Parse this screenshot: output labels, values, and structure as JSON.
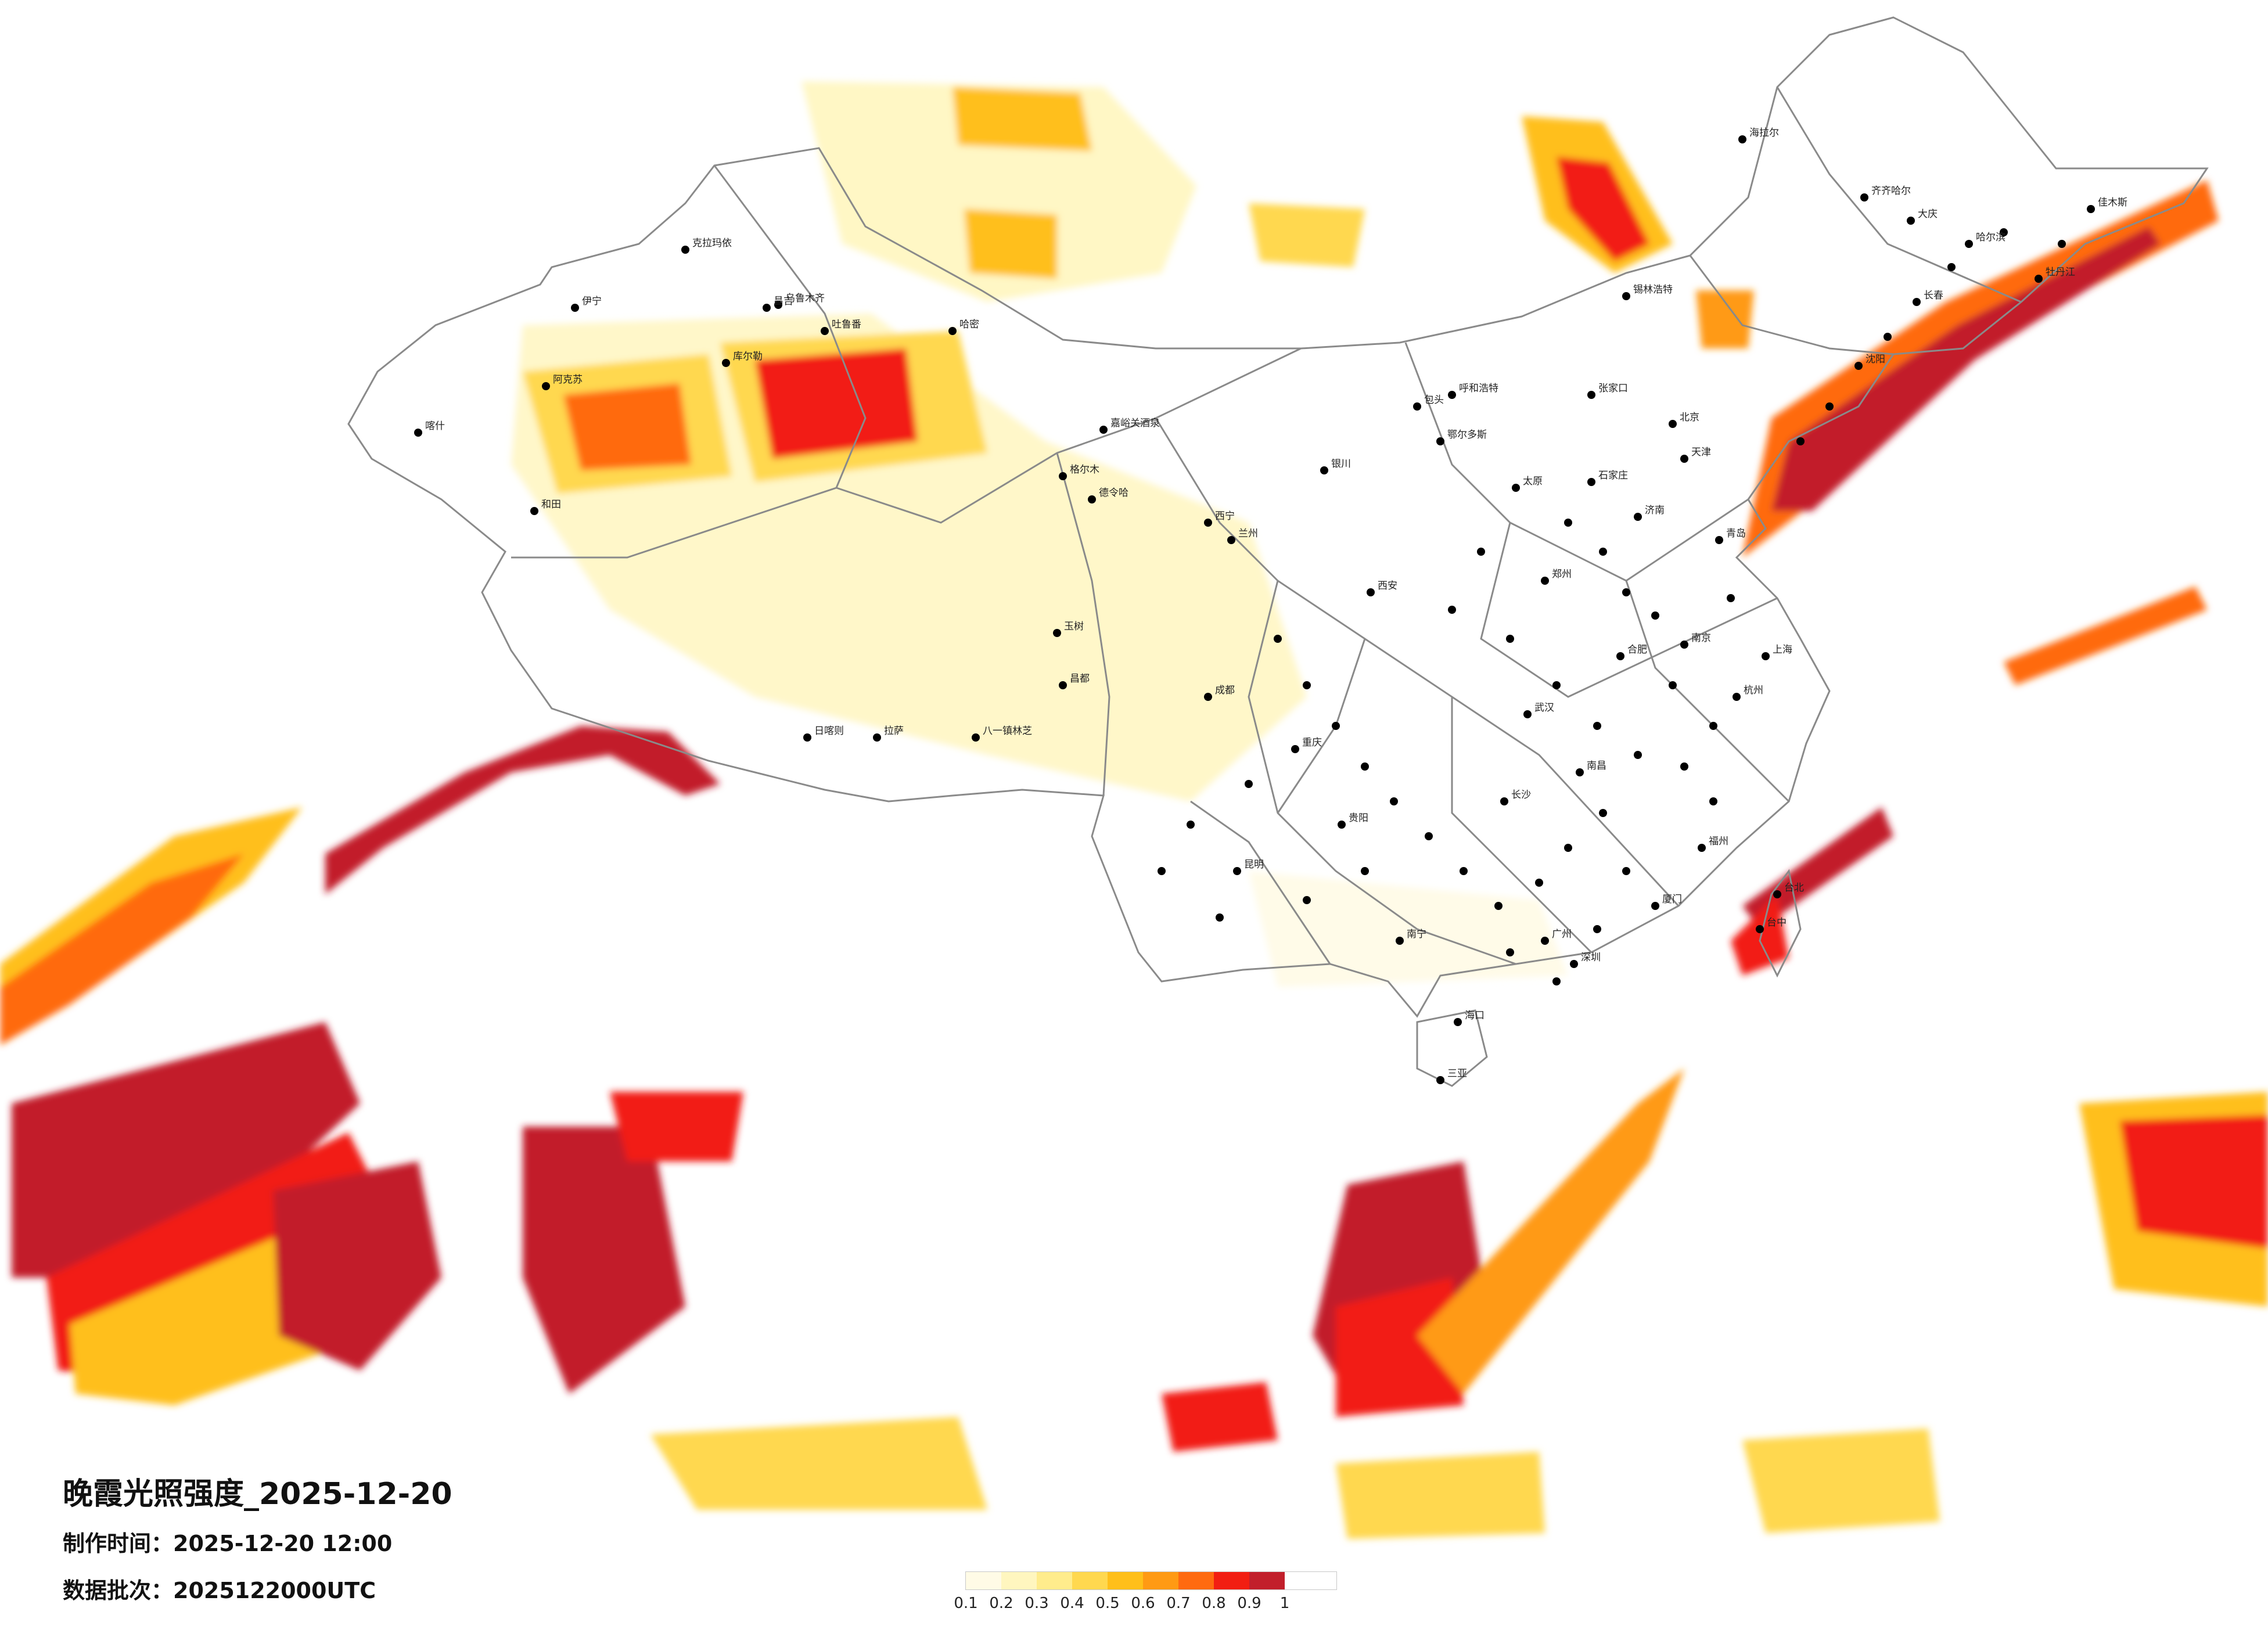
{
  "title": "晚霞光照强度_2025-12-20",
  "produced_label": "制作时间：",
  "produced_value": "2025-12-20 12:00",
  "batch_label": "数据批次：",
  "batch_value": "2025122000UTC",
  "legend": {
    "ticks": [
      "0.1",
      "0.2",
      "0.3",
      "0.4",
      "0.5",
      "0.6",
      "0.7",
      "0.8",
      "0.9",
      "1"
    ],
    "colors": [
      "#fffbe6",
      "#fff6bf",
      "#ffec8c",
      "#ffd84f",
      "#ffbf1a",
      "#ff9a14",
      "#ff6a10",
      "#f21e12",
      "#c21f2b"
    ]
  },
  "map_colors": {
    "border": "#8a8a8a",
    "city": "#000000"
  },
  "cities": [
    "克拉玛依",
    "伊宁",
    "昌吉",
    "乌鲁木齐",
    "吐鲁番",
    "哈密",
    "阿克苏",
    "库尔勒",
    "和田",
    "喀什",
    "格尔木",
    "日喀则",
    "拉萨",
    "八一镇林芝",
    "昌都",
    "玉树",
    "西宁",
    "德令哈",
    "嘉峪关酒泉",
    "银川",
    "兰州",
    "呼和浩特",
    "包头",
    "鄂尔多斯",
    "张家口",
    "北京",
    "天津",
    "石家庄",
    "太原",
    "济南",
    "青岛",
    "郑州",
    "西安",
    "成都",
    "重庆",
    "贵阳",
    "昆明",
    "南宁",
    "广州",
    "深圳",
    "福州",
    "厦门",
    "南昌",
    "长沙",
    "武汉",
    "合肥",
    "南京",
    "上海",
    "杭州",
    "沈阳",
    "长春",
    "哈尔滨",
    "海拉尔",
    "齐齐哈尔",
    "大庆",
    "佳木斯",
    "牡丹江",
    "锡林浩特",
    "台北",
    "台中",
    "海口",
    "三亚"
  ]
}
